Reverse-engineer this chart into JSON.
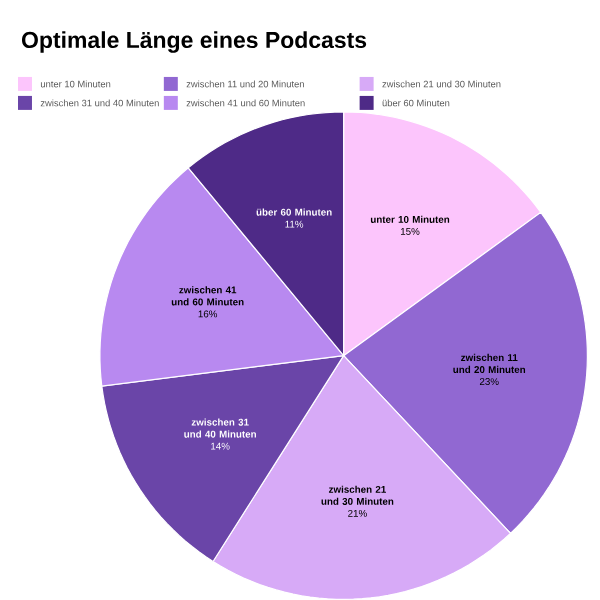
{
  "chart_data": {
    "type": "pie",
    "title": "Optimale Länge eines Podcasts",
    "categories": [
      "unter 10 Minuten",
      "zwischen 11 und 20 Minuten",
      "zwischen 21 und 30 Minuten",
      "zwischen 31 und 40 Minuten",
      "zwischen 41 und 60 Minuten",
      "über 60 Minuten"
    ],
    "values": [
      15,
      23,
      21,
      14,
      16,
      11
    ],
    "value_labels": [
      "15%",
      "23%",
      "21%",
      "14%",
      "16%",
      "11%"
    ],
    "colors": [
      "#fcc5fc",
      "#9168d2",
      "#d7aaf7",
      "#6a45a8",
      "#b889f0",
      "#4e2a87"
    ],
    "legend": "top"
  }
}
